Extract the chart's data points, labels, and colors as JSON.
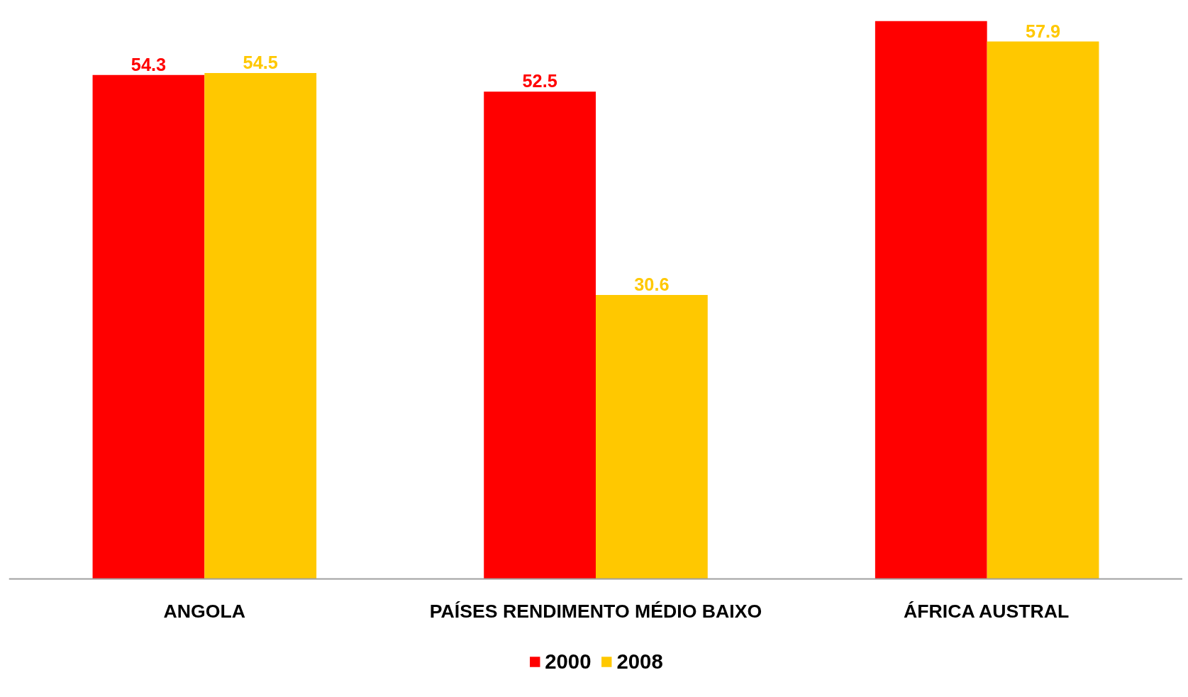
{
  "chart_data": {
    "type": "bar",
    "categories": [
      "ANGOLA",
      "PAÍSES RENDIMENTO MÉDIO BAIXO",
      "ÁFRICA AUSTRAL"
    ],
    "series": [
      {
        "name": "2000",
        "color": "#ff0000",
        "values": [
          54.3,
          52.5,
          60.1
        ],
        "value_labels": [
          "54.3",
          "52.5",
          null
        ]
      },
      {
        "name": "2008",
        "color": "#ffc800",
        "values": [
          54.5,
          30.6,
          57.9
        ],
        "value_labels": [
          "54.5",
          "30.6",
          "57.9"
        ]
      }
    ],
    "grid": false,
    "legend": "bottom"
  }
}
